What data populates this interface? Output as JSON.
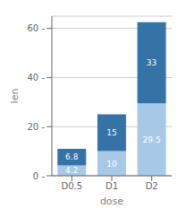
{
  "chart_data": {
    "type": "bar",
    "categories": [
      "D0.5",
      "D1",
      "D2"
    ],
    "series": [
      {
        "color": "#a8c8e8",
        "values": [
          4.2,
          10,
          29.5
        ]
      },
      {
        "color": "#3572a5",
        "values": [
          6.8,
          15,
          33
        ]
      }
    ],
    "stacked": true,
    "data_labels": true,
    "xlabel": "dose",
    "ylabel": "len",
    "ylim": [
      0,
      65
    ],
    "yticks": [
      {
        "value": 0,
        "label": "0 -"
      },
      {
        "value": 20,
        "label": "20 -"
      },
      {
        "value": 40,
        "label": "40 -"
      },
      {
        "value": 60,
        "label": "60 -"
      }
    ],
    "grid": true
  }
}
